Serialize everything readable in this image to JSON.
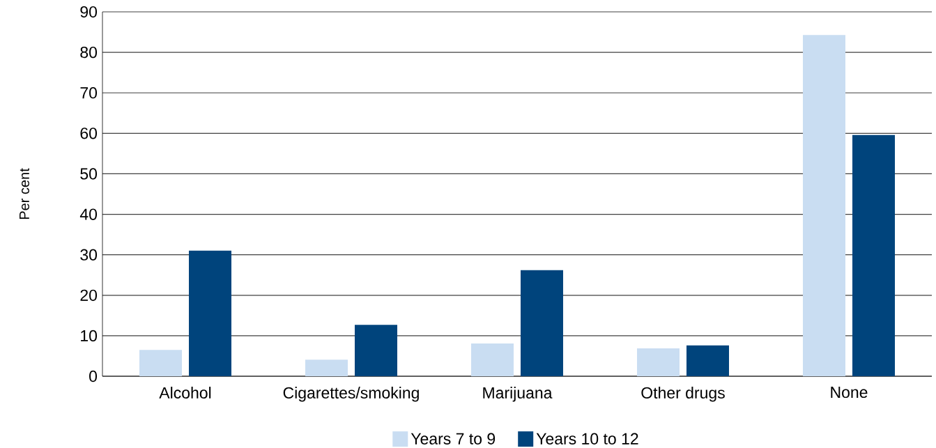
{
  "chart_data": {
    "type": "bar",
    "ylabel": "Per cent",
    "categories": [
      "Alcohol",
      "Cigarettes/smoking",
      "Marijuana",
      "Other drugs",
      "None"
    ],
    "series": [
      {
        "name": "Years 7 to 9",
        "color": "#c9ddf2",
        "values": [
          6.5,
          4.1,
          8.1,
          6.9,
          84.3
        ]
      },
      {
        "name": "Years 10 to 12",
        "color": "#00447c",
        "values": [
          31.0,
          12.7,
          26.2,
          7.6,
          59.6
        ]
      }
    ],
    "ylim": [
      0,
      90
    ],
    "yticks": [
      0,
      10,
      20,
      30,
      40,
      50,
      60,
      70,
      80,
      90
    ],
    "grid": "y",
    "legend": "bottom"
  }
}
